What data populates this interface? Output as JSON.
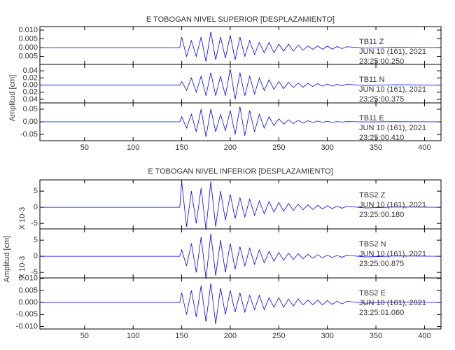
{
  "chart_data": [
    {
      "type": "line",
      "title": "E TOBOGAN NIVEL SUPERIOR [DESPLAZAMIENTO]",
      "ylabel": "Amplitud [cm]",
      "color": "#0000ff",
      "xlim": [
        4,
        417
      ],
      "xticks": [
        50,
        100,
        150,
        200,
        250,
        300,
        350,
        400
      ],
      "x": [
        4,
        148,
        150,
        155,
        160,
        165,
        170,
        175,
        180,
        185,
        190,
        195,
        200,
        205,
        210,
        215,
        220,
        225,
        230,
        235,
        240,
        245,
        250,
        255,
        260,
        265,
        270,
        275,
        280,
        285,
        290,
        295,
        300,
        305,
        310,
        315,
        320,
        340,
        370,
        417
      ],
      "panels": [
        {
          "label": "TB11   Z",
          "date": "JUN 10 (161), 2021",
          "time": "23:25:00.250",
          "ylim": [
            -0.0096,
            0.012
          ],
          "yticks": [
            {
              "value": 0.01,
              "label": "0.010"
            },
            0.005,
            {
              "value": 0,
              "label": "0.000"
            },
            {
              "value": -0.005,
              "label": "0.005"
            }
          ],
          "values": [
            0,
            0,
            0.006,
            -0.005,
            0.004,
            -0.005,
            0.006,
            -0.008,
            0.009,
            -0.007,
            0.006,
            -0.006,
            0.007,
            -0.007,
            0.006,
            -0.005,
            0.004,
            -0.004,
            0.003,
            -0.003,
            0.003,
            -0.003,
            0.002,
            -0.002,
            0.002,
            -0.002,
            0.0015,
            -0.0015,
            0.001,
            -0.001,
            0.001,
            -0.001,
            0.0008,
            -0.0008,
            0.0006,
            -0.0006,
            0.0005,
            -0.0003,
            0.0002,
            0
          ]
        },
        {
          "label": "TB11   N",
          "date": "JUN 10 (161), 2021",
          "time": "23:25:00.375",
          "ylim": [
            -0.05,
            0.058
          ],
          "yticks": [
            0.04,
            0.02,
            {
              "value": 0,
              "label": "0.00"
            },
            {
              "value": -0.02,
              "label": "0.02"
            },
            {
              "value": -0.04,
              "label": "0.04"
            }
          ],
          "values": [
            0,
            0,
            0.01,
            -0.015,
            0.02,
            -0.02,
            0.025,
            -0.03,
            0.035,
            -0.03,
            0.025,
            -0.03,
            0.045,
            -0.04,
            0.035,
            -0.03,
            0.025,
            -0.025,
            0.02,
            -0.015,
            0.015,
            -0.012,
            0.01,
            -0.01,
            0.008,
            -0.007,
            0.006,
            -0.006,
            0.005,
            -0.004,
            0.004,
            -0.003,
            0.003,
            -0.003,
            0.002,
            -0.002,
            0.002,
            -0.001,
            0.001,
            0
          ]
        },
        {
          "label": "TB11   E",
          "date": "JUN 10 (161), 2021",
          "time": "23:25:00.410",
          "ylim": [
            -0.075,
            0.075
          ],
          "yticks": [
            0.05,
            {
              "value": 0,
              "label": "0.00"
            },
            -0.05
          ],
          "values": [
            0,
            0,
            0.02,
            -0.025,
            0.03,
            -0.04,
            0.05,
            -0.06,
            0.05,
            -0.04,
            0.03,
            -0.035,
            0.045,
            -0.05,
            0.06,
            -0.055,
            0.045,
            -0.04,
            0.03,
            -0.025,
            0.02,
            -0.015,
            0.012,
            -0.01,
            0.008,
            -0.007,
            0.006,
            -0.005,
            0.004,
            -0.003,
            0.003,
            -0.002,
            0.002,
            -0.002,
            0.001,
            -0.001,
            0.001,
            -0.0005,
            0.0005,
            0
          ]
        }
      ]
    },
    {
      "type": "line",
      "title": "E TOBOGAN NIVEL INFERIOR [DESPLAZAMIENTO]",
      "ylabel": "Amplitud [cm]",
      "color": "#0000ff",
      "xlim": [
        4,
        417
      ],
      "xticks": [
        50,
        100,
        150,
        200,
        250,
        300,
        350,
        400
      ],
      "x": [
        4,
        148,
        150,
        155,
        160,
        165,
        170,
        175,
        180,
        185,
        190,
        195,
        200,
        205,
        210,
        215,
        220,
        225,
        230,
        235,
        240,
        245,
        250,
        255,
        260,
        265,
        270,
        275,
        280,
        285,
        290,
        295,
        300,
        305,
        310,
        315,
        320,
        340,
        370,
        417
      ],
      "panels": [
        {
          "label": "TBS2   Z",
          "date": "JUN 10 (161), 2021",
          "time": "23:25:00.180",
          "scale_label": "X 10-3",
          "ylim": [
            -6.7,
            8.5
          ],
          "yticks": [
            5,
            0,
            -5
          ],
          "values": [
            0,
            0,
            8,
            -6,
            5,
            -5,
            6,
            -7,
            8,
            -6,
            5,
            -4,
            4,
            -3.5,
            3,
            -3,
            2.5,
            -2.5,
            2,
            -2,
            1.8,
            -1.5,
            1.5,
            -1.2,
            1.2,
            -1,
            1,
            -0.8,
            0.8,
            -0.7,
            0.6,
            -0.5,
            0.5,
            -0.4,
            0.4,
            -0.3,
            0.3,
            -0.2,
            0.1,
            0
          ]
        },
        {
          "label": "TBS2   N",
          "date": "JUN 10 (161), 2021",
          "time": "23:25:00.875",
          "scale_label": "X 10-3",
          "ylim": [
            -6.7,
            8.5
          ],
          "yticks": [
            5,
            0,
            -5
          ],
          "values": [
            0,
            0,
            2,
            -3,
            4,
            -5,
            6,
            -7,
            7,
            -6,
            5,
            -5,
            4,
            -4,
            3,
            -3,
            2.5,
            -2.5,
            2,
            -2,
            1.5,
            -1.5,
            1.2,
            -1.2,
            1,
            -1,
            0.8,
            -0.8,
            0.6,
            -0.6,
            0.5,
            -0.5,
            0.4,
            -0.4,
            0.3,
            -0.3,
            0.3,
            -0.2,
            0.1,
            0
          ]
        },
        {
          "label": "TBS2   E",
          "date": "JUN 10 (161), 2021",
          "time": "23:25:01.060",
          "ylim": [
            -0.011,
            0.0102
          ],
          "yticks": [
            {
              "value": 0.01,
              "label": "0.010"
            },
            0.005,
            {
              "value": 0,
              "label": "0.000"
            },
            -0.005,
            {
              "value": -0.01,
              "label": "-0.010"
            }
          ],
          "values": [
            0,
            0,
            0.004,
            -0.005,
            0.005,
            -0.006,
            0.007,
            -0.008,
            0.008,
            -0.009,
            0.006,
            -0.005,
            0.005,
            -0.004,
            0.004,
            -0.004,
            0.003,
            -0.003,
            0.003,
            -0.003,
            0.002,
            -0.002,
            0.002,
            -0.002,
            0.0015,
            -0.0015,
            0.0015,
            -0.001,
            0.001,
            -0.001,
            0.001,
            -0.001,
            0.0008,
            -0.0008,
            0.0006,
            -0.0006,
            0.0005,
            -0.0003,
            0.0002,
            0
          ]
        }
      ]
    }
  ]
}
